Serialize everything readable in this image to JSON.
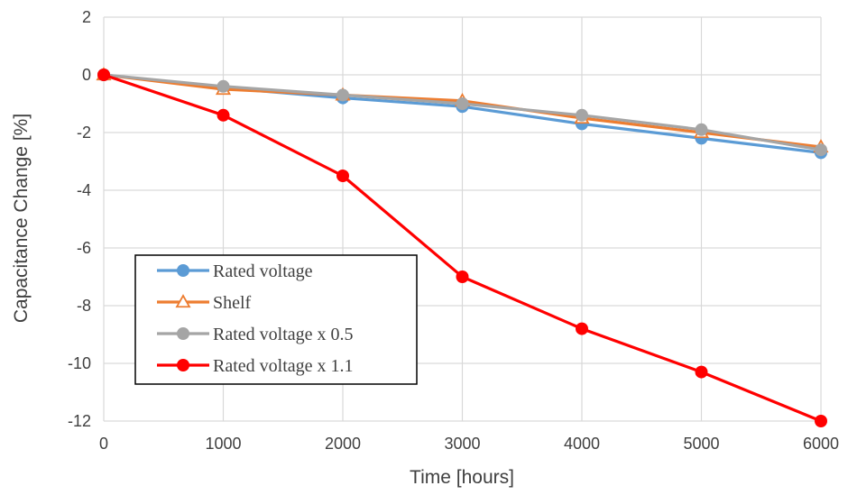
{
  "chart_data": {
    "type": "line",
    "title": "",
    "xlabel": "Time [hours]",
    "ylabel": "Capacitance Change [%]",
    "x": [
      0,
      1000,
      2000,
      3000,
      4000,
      5000,
      6000
    ],
    "xlim": [
      0,
      6000
    ],
    "ylim": [
      -12,
      2
    ],
    "xticks": [
      0,
      1000,
      2000,
      3000,
      4000,
      5000,
      6000
    ],
    "yticks": [
      2,
      0,
      -2,
      -4,
      -6,
      -8,
      -10,
      -12
    ],
    "grid": true,
    "legend_position": "bottom-left",
    "series": [
      {
        "name": "Rated voltage",
        "color": "#5b9bd5",
        "marker": "circle",
        "values": [
          0,
          -0.45,
          -0.8,
          -1.1,
          -1.7,
          -2.2,
          -2.7
        ]
      },
      {
        "name": "Shelf",
        "color": "#ed7d31",
        "marker": "triangle-open",
        "values": [
          0,
          -0.5,
          -0.7,
          -0.9,
          -1.5,
          -2.0,
          -2.5
        ]
      },
      {
        "name": "Rated voltage x 0.5",
        "color": "#a5a5a5",
        "marker": "circle",
        "values": [
          0,
          -0.4,
          -0.7,
          -1.0,
          -1.4,
          -1.9,
          -2.6
        ]
      },
      {
        "name": "Rated voltage x 1.1",
        "color": "#ff0000",
        "marker": "circle",
        "values": [
          0,
          -1.4,
          -3.5,
          -7.0,
          -8.8,
          -10.3,
          -12.0
        ]
      }
    ]
  }
}
